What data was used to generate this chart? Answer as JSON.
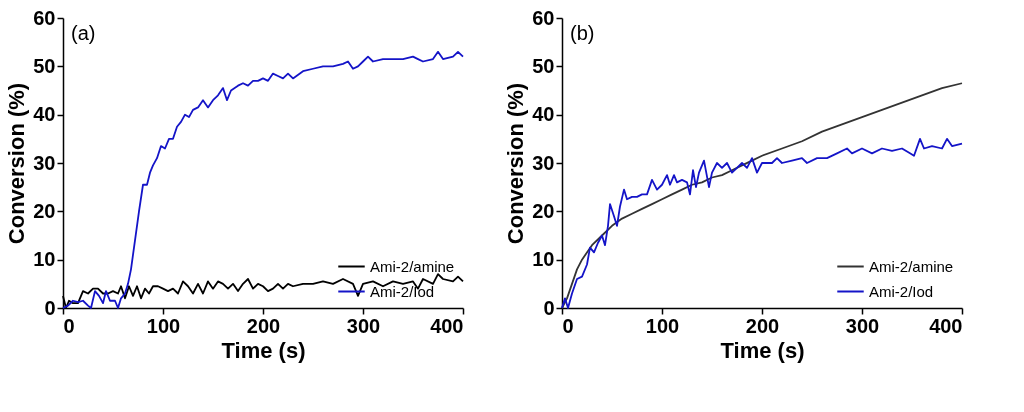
{
  "chart_data": [
    {
      "type": "line",
      "xlabel": "Time (s)",
      "ylabel": "Conversion (%)",
      "annotations": [
        "(a)"
      ],
      "xlim": [
        0,
        400
      ],
      "xticks": [
        0,
        100,
        200,
        300,
        400
      ],
      "ylim": [
        0,
        60
      ],
      "yticks": [
        0,
        10,
        20,
        30,
        40,
        50,
        60
      ],
      "grid": false,
      "legend": "bottom right",
      "line_style": "solid",
      "marker": "none",
      "series": [
        {
          "name": "Ami-2/amine",
          "color": "#000000",
          "x": [
            0,
            3,
            6,
            10,
            15,
            20,
            25,
            30,
            35,
            40,
            45,
            50,
            55,
            58,
            62,
            66,
            70,
            74,
            78,
            82,
            86,
            90,
            95,
            100,
            105,
            110,
            115,
            120,
            125,
            130,
            135,
            140,
            145,
            150,
            155,
            160,
            165,
            170,
            175,
            180,
            185,
            190,
            195,
            200,
            205,
            210,
            215,
            220,
            225,
            230,
            240,
            250,
            260,
            270,
            280,
            290,
            295,
            300,
            310,
            320,
            330,
            340,
            350,
            355,
            360,
            370,
            375,
            380,
            390,
            395,
            400
          ],
          "values": [
            2.5,
            0,
            1.5,
            1,
            1,
            3.5,
            3,
            4,
            4,
            3,
            3,
            3.5,
            3,
            4.5,
            2,
            4.5,
            2.5,
            4.5,
            2,
            4,
            3,
            4.5,
            4.5,
            4,
            3.5,
            4,
            3,
            5.5,
            4.5,
            3,
            5,
            3,
            5.5,
            4,
            5.5,
            5,
            4,
            5,
            3.5,
            5,
            6,
            4,
            5,
            4.5,
            3.5,
            4,
            5,
            4,
            5,
            4.5,
            5,
            5,
            5.5,
            5,
            6,
            5,
            2.5,
            5,
            5.5,
            4.5,
            5.5,
            5,
            5.5,
            4,
            6,
            5,
            7,
            6,
            5.5,
            6.5,
            5.5
          ]
        },
        {
          "name": "Ami-2/Iod",
          "color": "#1414c8",
          "x": [
            0,
            5,
            10,
            15,
            20,
            25,
            28,
            32,
            36,
            40,
            43,
            47,
            52,
            55,
            58,
            62,
            65,
            68,
            72,
            76,
            80,
            84,
            87,
            90,
            94,
            98,
            102,
            106,
            110,
            114,
            118,
            122,
            126,
            130,
            135,
            140,
            145,
            150,
            155,
            160,
            164,
            168,
            175,
            180,
            185,
            190,
            195,
            200,
            205,
            210,
            215,
            220,
            225,
            230,
            240,
            250,
            260,
            270,
            280,
            285,
            290,
            295,
            300,
            305,
            310,
            320,
            330,
            340,
            350,
            355,
            360,
            370,
            375,
            380,
            390,
            395,
            400
          ],
          "values": [
            0,
            0.5,
            1.5,
            1.2,
            1.5,
            0.5,
            0,
            3.5,
            2.5,
            1,
            3.5,
            1.5,
            1.5,
            0,
            2,
            3,
            5,
            8,
            14,
            20,
            25.5,
            25.5,
            28,
            29.5,
            31,
            33.5,
            33,
            35,
            35,
            37.5,
            38.5,
            40,
            39.5,
            41,
            41.5,
            43,
            41.5,
            43,
            44,
            45.5,
            43,
            45,
            46,
            46.5,
            46,
            47,
            47,
            47.5,
            47,
            48.5,
            48,
            47.5,
            48.5,
            47.5,
            49,
            49.5,
            50,
            50,
            50.5,
            51,
            49.5,
            50,
            51,
            52,
            51,
            51.5,
            51.5,
            51.5,
            52,
            51.5,
            51,
            51.5,
            53,
            51.5,
            52,
            53,
            52
          ]
        }
      ]
    },
    {
      "type": "line",
      "xlabel": "Time (s)",
      "ylabel": "Conversion (%)",
      "annotations": [
        "(b)"
      ],
      "xlim": [
        0,
        400
      ],
      "xticks": [
        0,
        100,
        200,
        300,
        400
      ],
      "ylim": [
        0,
        60
      ],
      "yticks": [
        0,
        10,
        20,
        30,
        40,
        50,
        60
      ],
      "grid": false,
      "legend": "bottom right",
      "line_style": "solid",
      "marker": "none",
      "series": [
        {
          "name": "Ami-2/amine",
          "color": "#333333",
          "x": [
            0,
            5,
            10,
            15,
            20,
            30,
            40,
            50,
            60,
            70,
            80,
            90,
            100,
            110,
            120,
            130,
            140,
            150,
            160,
            170,
            180,
            190,
            200,
            220,
            240,
            260,
            280,
            300,
            320,
            340,
            360,
            380,
            400
          ],
          "values": [
            0,
            2,
            5,
            8,
            10,
            13,
            15,
            17,
            18.5,
            19.5,
            20.5,
            21.5,
            22.5,
            23.5,
            24.5,
            25.5,
            26,
            27,
            27.5,
            28.5,
            29.5,
            30.5,
            31.5,
            33,
            34.5,
            36.5,
            38,
            39.5,
            41,
            42.5,
            44,
            45.5,
            46.5
          ]
        },
        {
          "name": "Ami-2/Iod",
          "color": "#1414c8",
          "x": [
            0,
            3,
            6,
            10,
            15,
            20,
            25,
            28,
            32,
            36,
            40,
            43,
            46,
            48,
            52,
            55,
            58,
            62,
            65,
            70,
            75,
            80,
            85,
            90,
            95,
            100,
            105,
            108,
            112,
            115,
            120,
            125,
            128,
            131,
            134,
            137,
            142,
            147,
            150,
            155,
            160,
            165,
            170,
            175,
            180,
            185,
            190,
            195,
            200,
            210,
            215,
            220,
            230,
            240,
            245,
            255,
            265,
            275,
            285,
            290,
            300,
            310,
            320,
            330,
            340,
            348,
            352,
            358,
            362,
            370,
            380,
            385,
            390,
            400
          ],
          "values": [
            0,
            2,
            0,
            3,
            6,
            6.5,
            9,
            12.5,
            11.5,
            13.5,
            15,
            13,
            17,
            21.5,
            19,
            17,
            21,
            24.5,
            22.5,
            23,
            23,
            23.5,
            23.5,
            26.5,
            24.5,
            25.5,
            27.5,
            25.5,
            27.5,
            26,
            26.5,
            26,
            23.5,
            28.5,
            25,
            28,
            30.5,
            25,
            28,
            30,
            29,
            30,
            28,
            29,
            30,
            29,
            31,
            28,
            30,
            30,
            31,
            30,
            30.5,
            31,
            30,
            31,
            31,
            32,
            33,
            32,
            33,
            32,
            33,
            32.5,
            33,
            32,
            31.5,
            35,
            33,
            33.5,
            33,
            35,
            33.5,
            34
          ]
        }
      ]
    }
  ]
}
